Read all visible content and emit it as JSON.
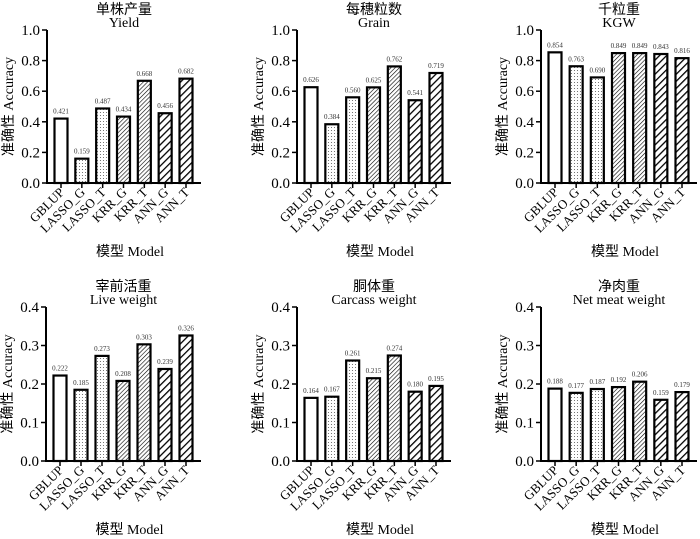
{
  "chart_data": [
    {
      "type": "bar",
      "title_cn": "单株产量",
      "title": "Yield",
      "xlabel": "模型 Model",
      "ylabel": "准确性 Accuracy",
      "ylim": [
        0,
        1.0
      ],
      "yticks": [
        "0.0",
        "0.2",
        "0.4",
        "0.6",
        "0.8",
        "1.0"
      ],
      "categories": [
        "GBLUP",
        "LASSO_G",
        "LASSO_T",
        "KRR_G",
        "KRR_T",
        "ANN_G",
        "ANN_T"
      ],
      "values": [
        0.421,
        0.159,
        0.487,
        0.434,
        0.668,
        0.456,
        0.682
      ],
      "labels": [
        "0.421",
        "0.159",
        "0.487",
        "0.434",
        "0.668",
        "0.456",
        "0.682"
      ]
    },
    {
      "type": "bar",
      "title_cn": "每穗粒数",
      "title": "Grain",
      "xlabel": "模型 Model",
      "ylabel": "准确性 Accuracy",
      "ylim": [
        0,
        1.0
      ],
      "yticks": [
        "0.0",
        "0.2",
        "0.4",
        "0.6",
        "0.8",
        "1.0"
      ],
      "categories": [
        "GBLUP",
        "LASSO_G",
        "LASSO_T",
        "KRR_G",
        "KRR_T",
        "ANN_G",
        "ANN_T"
      ],
      "values": [
        0.626,
        0.384,
        0.56,
        0.625,
        0.762,
        0.541,
        0.719
      ],
      "labels": [
        "0.626",
        "0.384",
        "0.560",
        "0.625",
        "0.762",
        "0.541",
        "0.719"
      ]
    },
    {
      "type": "bar",
      "title_cn": "千粒重",
      "title": "KGW",
      "xlabel": "模型 Model",
      "ylabel": "准确性 Accuracy",
      "ylim": [
        0,
        1.0
      ],
      "yticks": [
        "0.0",
        "0.2",
        "0.4",
        "0.6",
        "0.8",
        "1.0"
      ],
      "categories": [
        "GBLUP",
        "LASSO_G",
        "LASSO_T",
        "KRR_G",
        "KRR_T",
        "ANN_G",
        "ANN_T"
      ],
      "values": [
        0.854,
        0.763,
        0.69,
        0.849,
        0.849,
        0.843,
        0.816
      ],
      "labels": [
        "0.854",
        "0.763",
        "0.690",
        "0.849",
        "0.849",
        "0.843",
        "0.816"
      ]
    },
    {
      "type": "bar",
      "title_cn": "宰前活重",
      "title": "Live weight",
      "xlabel": "模型 Model",
      "ylabel": "准确性 Accuracy",
      "ylim": [
        0,
        0.4
      ],
      "yticks": [
        "0.0",
        "0.1",
        "0.2",
        "0.3",
        "0.4"
      ],
      "categories": [
        "GBLUP",
        "LASSO_G",
        "LASSO_T",
        "KRR_G",
        "KRR_T",
        "ANN_G",
        "ANN_T"
      ],
      "values": [
        0.222,
        0.185,
        0.273,
        0.208,
        0.303,
        0.239,
        0.326
      ],
      "labels": [
        "0.222",
        "0.185",
        "0.273",
        "0.208",
        "0.303",
        "0.239",
        "0.326"
      ]
    },
    {
      "type": "bar",
      "title_cn": "胴体重",
      "title": "Carcass weight",
      "xlabel": "模型 Model",
      "ylabel": "准确性 Accuracy",
      "ylim": [
        0,
        0.4
      ],
      "yticks": [
        "0.0",
        "0.1",
        "0.2",
        "0.3",
        "0.4"
      ],
      "categories": [
        "GBLUP",
        "LASSO_G",
        "LASSO_T",
        "KRR_G",
        "KRR_T",
        "ANN_G",
        "ANN_T"
      ],
      "values": [
        0.164,
        0.167,
        0.261,
        0.215,
        0.274,
        0.18,
        0.195
      ],
      "labels": [
        "0.164",
        "0.167",
        "0.261",
        "0.215",
        "0.274",
        "0.180",
        "0.195"
      ]
    },
    {
      "type": "bar",
      "title_cn": "净肉重",
      "title": "Net meat weight",
      "xlabel": "模型 Model",
      "ylabel": "准确性 Accuracy",
      "ylim": [
        0,
        0.4
      ],
      "yticks": [
        "0.0",
        "0.1",
        "0.2",
        "0.3",
        "0.4"
      ],
      "categories": [
        "GBLUP",
        "LASSO_G",
        "LASSO_T",
        "KRR_G",
        "KRR_T",
        "ANN_G",
        "ANN_T"
      ],
      "values": [
        0.188,
        0.177,
        0.187,
        0.192,
        0.206,
        0.159,
        0.179
      ],
      "labels": [
        "0.188",
        "0.177",
        "0.187",
        "0.192",
        "0.206",
        "0.159",
        "0.179"
      ]
    }
  ],
  "bar_fill_patterns": [
    "empty",
    "dots",
    "dots",
    "fine-diagonal",
    "fine-diagonal",
    "bold-diagonal",
    "bold-diagonal"
  ]
}
